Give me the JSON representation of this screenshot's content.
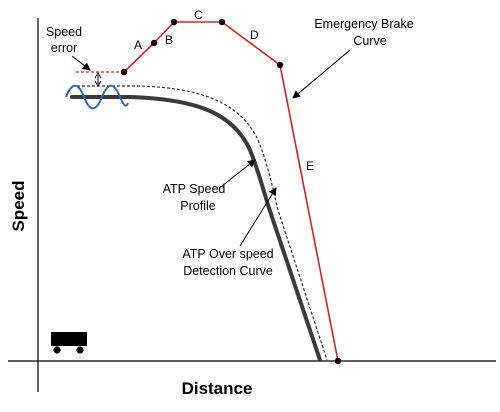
{
  "axes": {
    "x_title": "Distance",
    "y_title": "Speed"
  },
  "labels": {
    "speed_error_line1": "Speed",
    "speed_error_line2": "error",
    "emergency_line1": "Emergency Brake",
    "emergency_line2": "Curve",
    "atp_profile_line1": "ATP Speed",
    "atp_profile_line2": "Profile",
    "overspeed_line1": "ATP Over speed",
    "overspeed_line2": "Detection Curve"
  },
  "points": {
    "A": "A",
    "B": "B",
    "C": "C",
    "D": "D",
    "E": "E"
  },
  "colors": {
    "emergency_curve": "#e02020",
    "atp_profile": "#3a3a3a",
    "wave": "#2a6db5",
    "train": "#000000"
  }
}
